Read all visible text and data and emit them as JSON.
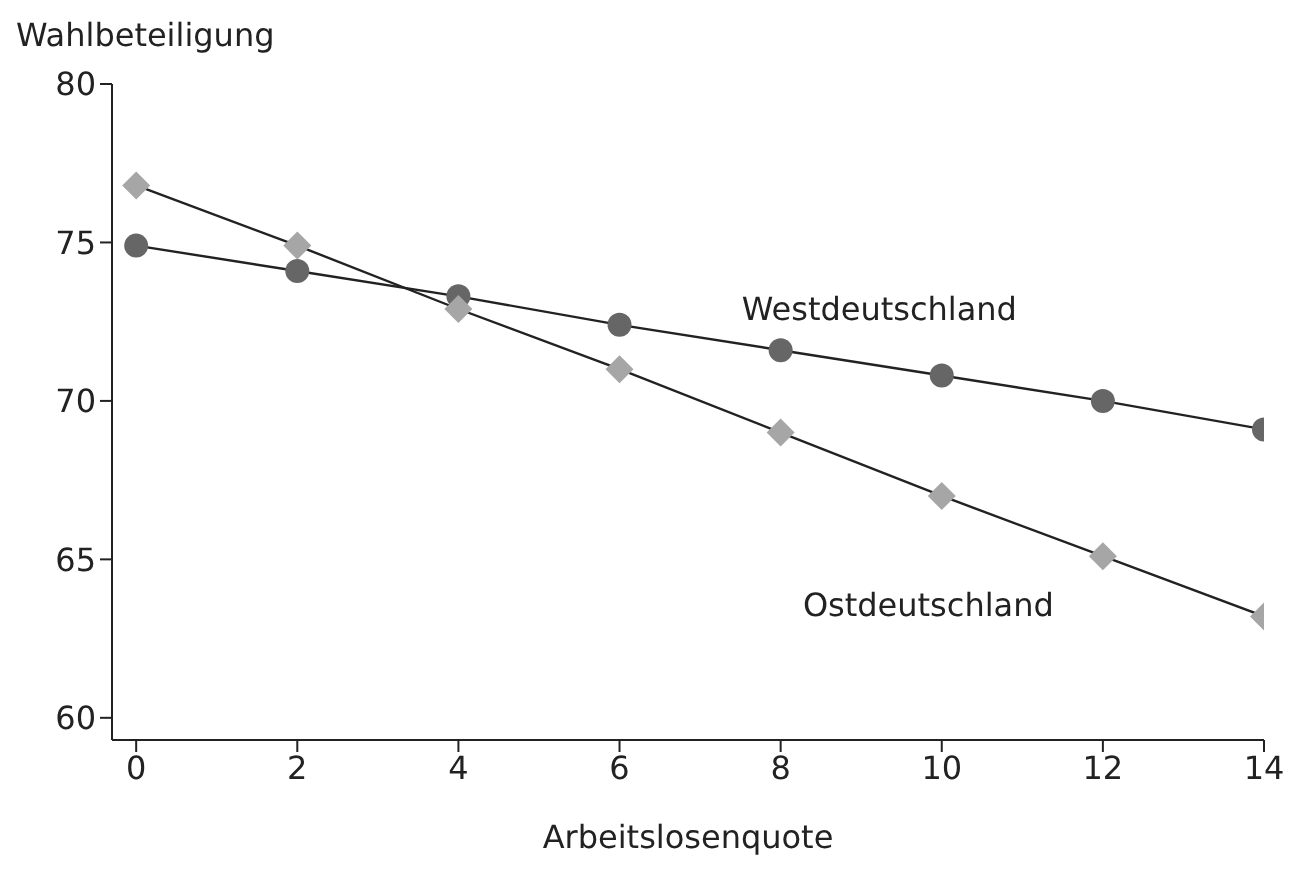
{
  "chart_data": {
    "type": "line",
    "xlabel": "Arbeitslosenquote",
    "ylabel": "Wahlbeteiligung",
    "x": [
      0,
      2,
      4,
      6,
      8,
      10,
      12,
      14
    ],
    "series": [
      {
        "name": "Westdeutschland",
        "color": "#666666",
        "marker": "circle",
        "values": [
          74.9,
          74.1,
          73.3,
          72.4,
          71.6,
          70.8,
          70.0,
          69.1
        ]
      },
      {
        "name": "Ostdeutschland",
        "color": "#a6a6a6",
        "marker": "diamond",
        "values": [
          76.8,
          74.9,
          72.9,
          71.0,
          69.0,
          67.0,
          65.1,
          63.2
        ]
      }
    ],
    "xlim": [
      -0.3,
      14
    ],
    "xticks": [
      0,
      2,
      4,
      6,
      8,
      10,
      12,
      14
    ],
    "ylim": [
      59.3,
      80
    ],
    "yticks": [
      60,
      65,
      70,
      75,
      80
    ],
    "grid": false,
    "legend": false,
    "line_style": "solid"
  }
}
